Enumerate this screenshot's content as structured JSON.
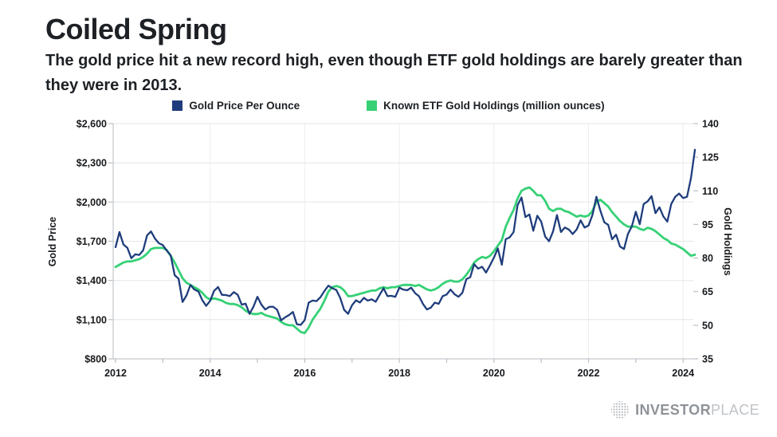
{
  "header": {
    "title": "Coiled Spring",
    "subtitle_line1": "The gold price hit a new record high, even though ETF gold holdings are barely greater than",
    "subtitle_line2": "they were in 2013."
  },
  "branding": {
    "icon": "dotted-globe",
    "text_primary": "INVESTOR",
    "text_secondary": "PLACE"
  },
  "chart_data": {
    "type": "line",
    "title": "Coiled Spring",
    "x_start_year": 2012,
    "x_end_year": 2024.25,
    "x_frequency": "monthly",
    "x_tick_labels": [
      "2012",
      "2014",
      "2016",
      "2018",
      "2020",
      "2022",
      "2024"
    ],
    "grid": true,
    "legend_position": "top",
    "y_left": {
      "label": "Gold Price",
      "min": 800,
      "max": 2600,
      "tick_labels": [
        "$2,600",
        "$2,300",
        "$2,000",
        "$1,700",
        "$1,400",
        "$1,100",
        "$800"
      ]
    },
    "y_right": {
      "label": "Gold Holdings",
      "min": 35,
      "max": 140,
      "tick_labels": [
        "140",
        "125",
        "110",
        "95",
        "80",
        "65",
        "50",
        "35"
      ]
    },
    "series": [
      {
        "name": "Gold Price Per Ounce",
        "axis": "left",
        "color": "#1f3d7c",
        "width": 2.3,
        "values": [
          1655,
          1770,
          1675,
          1650,
          1570,
          1600,
          1595,
          1630,
          1745,
          1775,
          1720,
          1685,
          1670,
          1628,
          1592,
          1440,
          1413,
          1235,
          1285,
          1365,
          1330,
          1316,
          1250,
          1205,
          1244,
          1320,
          1350,
          1290,
          1288,
          1280,
          1311,
          1290,
          1215,
          1222,
          1145,
          1200,
          1275,
          1215,
          1178,
          1198,
          1199,
          1175,
          1095,
          1117,
          1135,
          1159,
          1065,
          1060,
          1097,
          1230,
          1246,
          1242,
          1272,
          1320,
          1360,
          1340,
          1327,
          1267,
          1175,
          1145,
          1210,
          1248,
          1231,
          1267,
          1246,
          1255,
          1237,
          1290,
          1340,
          1280,
          1282,
          1275,
          1345,
          1330,
          1325,
          1345,
          1303,
          1279,
          1220,
          1178,
          1192,
          1230,
          1221,
          1280,
          1292,
          1330,
          1295,
          1275,
          1305,
          1410,
          1425,
          1525,
          1490,
          1505,
          1460,
          1515,
          1575,
          1645,
          1520,
          1715,
          1730,
          1770,
          1975,
          2035,
          1885,
          1905,
          1780,
          1895,
          1850,
          1735,
          1700,
          1775,
          1900,
          1770,
          1805,
          1790,
          1755,
          1790,
          1860,
          1805,
          1820,
          1900,
          2040,
          1935,
          1845,
          1825,
          1715,
          1750,
          1660,
          1640,
          1755,
          1815,
          1925,
          1830,
          1985,
          2005,
          2045,
          1915,
          1960,
          1890,
          1850,
          1985,
          2040,
          2065,
          2030,
          2040,
          2185,
          2400
        ]
      },
      {
        "name": "Known ETF Gold Holdings (million ounces)",
        "axis": "right",
        "color": "#36d176",
        "width": 2.8,
        "values": [
          76,
          77,
          78,
          78.5,
          78.5,
          79,
          79.5,
          80.5,
          82,
          84,
          84.5,
          84.5,
          84.5,
          83.5,
          81,
          78,
          74.5,
          71,
          69,
          68,
          67,
          66,
          64.5,
          62.5,
          61.5,
          62,
          61.5,
          61,
          60,
          59.5,
          59.5,
          59,
          58,
          56.5,
          55.5,
          55,
          55,
          55.5,
          54.5,
          54,
          53.5,
          53,
          51.5,
          50.5,
          50,
          50,
          48.5,
          47,
          46.5,
          49,
          52.5,
          55,
          57.5,
          61,
          65,
          67,
          67.5,
          67,
          65.5,
          63,
          63,
          63.5,
          64,
          64.5,
          65,
          65.5,
          65.5,
          66.5,
          67,
          66.5,
          67,
          67,
          67.5,
          68,
          68,
          68,
          67.5,
          68,
          67,
          66,
          65.5,
          66,
          67,
          68.5,
          69.5,
          70,
          69.5,
          69.5,
          70.5,
          72.5,
          75,
          78,
          79.5,
          80.5,
          80,
          81,
          83,
          85.5,
          88,
          94,
          98,
          101.5,
          106.5,
          110,
          111,
          111.5,
          110,
          108,
          108,
          105.5,
          102,
          101,
          102,
          102,
          101,
          100.5,
          99.5,
          98.5,
          99,
          98.5,
          99,
          101,
          105,
          106,
          104.5,
          103,
          100.5,
          98.5,
          96.5,
          95,
          94,
          94,
          94,
          93,
          92.5,
          93.5,
          93,
          92,
          90.5,
          89,
          88,
          86.5,
          86,
          85,
          84,
          82.5,
          81,
          81.5
        ]
      }
    ]
  }
}
